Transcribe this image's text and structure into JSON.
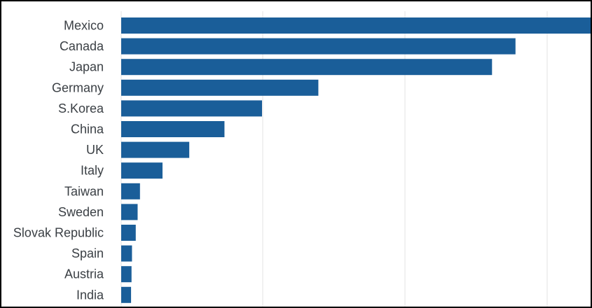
{
  "chart_data": {
    "type": "bar",
    "orientation": "horizontal",
    "categories": [
      "Mexico",
      "Canada",
      "Japan",
      "Germany",
      "S.Korea",
      "China",
      "UK",
      "Italy",
      "Taiwan",
      "Sweden",
      "Slovak Republic",
      "Spain",
      "Austria",
      "India"
    ],
    "values": [
      100,
      84,
      79,
      42,
      30,
      22,
      14.5,
      8.8,
      4,
      3.5,
      3.1,
      2.3,
      2.2,
      2.1
    ],
    "xlim": [
      0,
      100
    ],
    "grid": true,
    "bar_color": "#1a5e99",
    "grid_color": "#e3e3e3",
    "title": "",
    "xlabel": "",
    "ylabel": ""
  }
}
